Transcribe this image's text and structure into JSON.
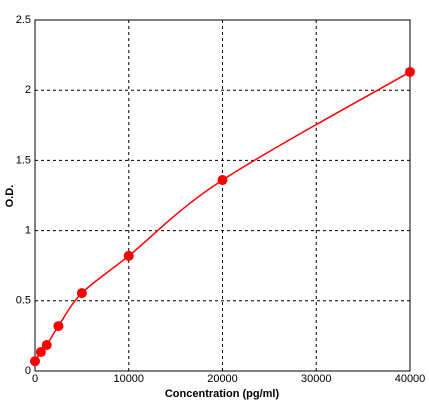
{
  "chart_data": {
    "type": "scatter",
    "x_label": "Concentration (pg/ml)",
    "y_label": "O.D.",
    "series": [
      {
        "color": "#ff0000",
        "x": [
          0,
          625,
          1250,
          2500,
          5000,
          10000,
          20000,
          40000
        ],
        "values": [
          0.07,
          0.135,
          0.185,
          0.32,
          0.555,
          0.82,
          1.36,
          2.13
        ]
      }
    ],
    "xlim": [
      0,
      40000
    ],
    "xticks": [
      0,
      10000,
      20000,
      30000,
      40000
    ],
    "ylim": [
      0,
      2.5
    ],
    "yticks": [
      0,
      0.5,
      1,
      1.5,
      2,
      2.5
    ],
    "grid": true
  }
}
